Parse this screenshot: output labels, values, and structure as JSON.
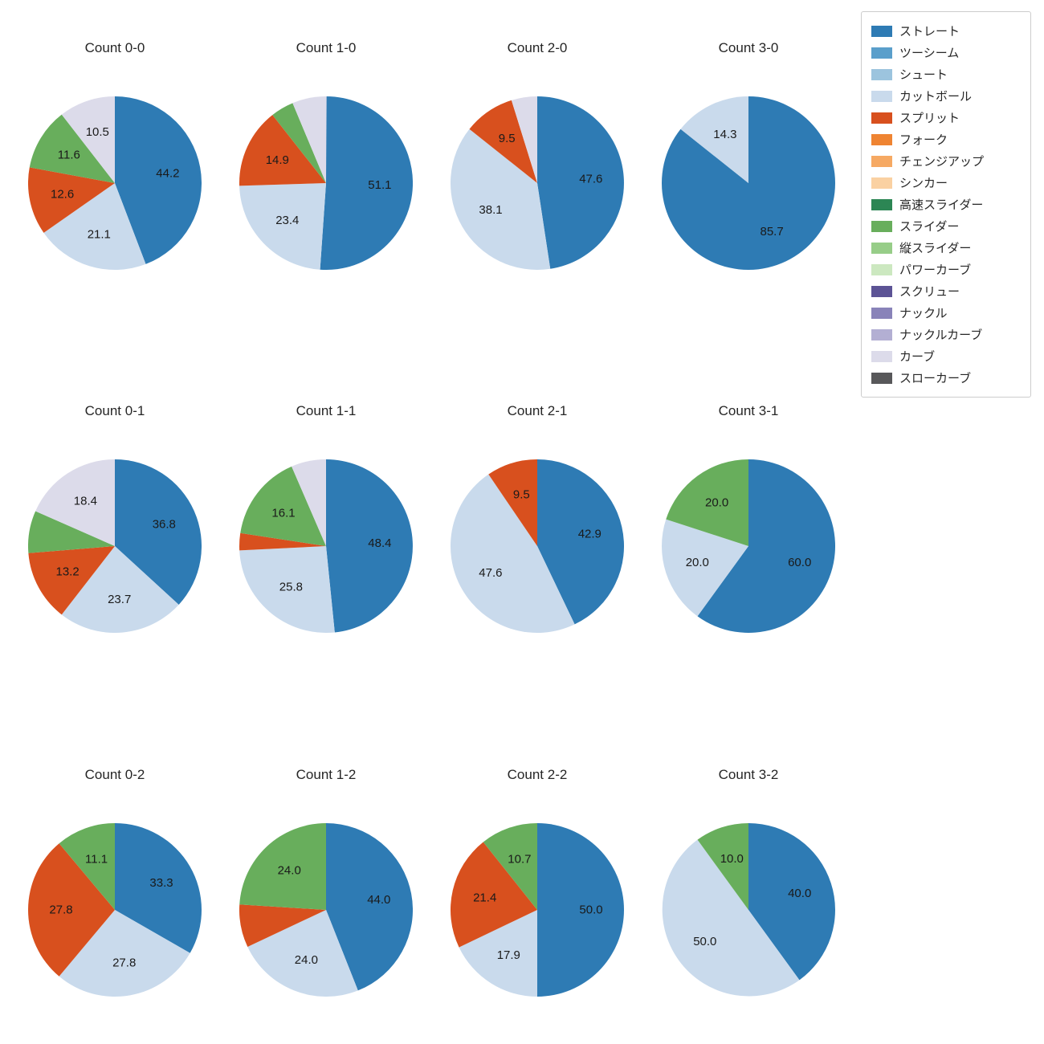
{
  "figure": {
    "rows": 3,
    "cols": 4,
    "start_angle_deg": 90,
    "direction": "clockwise",
    "label_format": "percent_one_decimal",
    "legend_position": "upper_right",
    "background": "#ffffff"
  },
  "palette": {
    "ストレート": "#2e7bb4",
    "ツーシーム": "#5a9fcb",
    "シュート": "#9cc4de",
    "カットボール": "#c9daec",
    "スプリット": "#d8501e",
    "フォーク": "#ef8432",
    "チェンジアップ": "#f6a963",
    "シンカー": "#fad1a2",
    "高速スライダー": "#2c8654",
    "スライダー": "#68ae5c",
    "縦スライダー": "#97cd88",
    "パワーカーブ": "#cce8c0",
    "スクリュー": "#5c5395",
    "ナックル": "#8983b9",
    "ナックルカーブ": "#b3afd3",
    "カーブ": "#dcdbea",
    "スローカーブ": "#58585a"
  },
  "legend": {
    "items": [
      "ストレート",
      "ツーシーム",
      "シュート",
      "カットボール",
      "スプリット",
      "フォーク",
      "チェンジアップ",
      "シンカー",
      "高速スライダー",
      "スライダー",
      "縦スライダー",
      "パワーカーブ",
      "スクリュー",
      "ナックル",
      "ナックルカーブ",
      "カーブ",
      "スローカーブ"
    ]
  },
  "chart_data": [
    {
      "type": "pie",
      "title": "Count 0-0",
      "slices": [
        {
          "pitch": "ストレート",
          "value": 44.2,
          "labeled": true
        },
        {
          "pitch": "カットボール",
          "value": 21.1,
          "labeled": true
        },
        {
          "pitch": "スプリット",
          "value": 12.6,
          "labeled": true
        },
        {
          "pitch": "スライダー",
          "value": 11.6,
          "labeled": true
        },
        {
          "pitch": "カーブ",
          "value": 10.5,
          "labeled": true
        }
      ]
    },
    {
      "type": "pie",
      "title": "Count 1-0",
      "slices": [
        {
          "pitch": "ストレート",
          "value": 51.1,
          "labeled": true
        },
        {
          "pitch": "カットボール",
          "value": 23.4,
          "labeled": true
        },
        {
          "pitch": "スプリット",
          "value": 14.9,
          "labeled": true
        },
        {
          "pitch": "スライダー",
          "value": 4.3,
          "labeled": false
        },
        {
          "pitch": "カーブ",
          "value": 6.4,
          "labeled": false
        }
      ]
    },
    {
      "type": "pie",
      "title": "Count 2-0",
      "slices": [
        {
          "pitch": "ストレート",
          "value": 47.6,
          "labeled": true
        },
        {
          "pitch": "カットボール",
          "value": 38.1,
          "labeled": true
        },
        {
          "pitch": "スプリット",
          "value": 9.5,
          "labeled": true
        },
        {
          "pitch": "カーブ",
          "value": 4.8,
          "labeled": false
        }
      ]
    },
    {
      "type": "pie",
      "title": "Count 3-0",
      "slices": [
        {
          "pitch": "ストレート",
          "value": 85.7,
          "labeled": true
        },
        {
          "pitch": "カットボール",
          "value": 14.3,
          "labeled": true
        }
      ]
    },
    {
      "type": "pie",
      "title": "Count 0-1",
      "slices": [
        {
          "pitch": "ストレート",
          "value": 36.8,
          "labeled": true
        },
        {
          "pitch": "カットボール",
          "value": 23.7,
          "labeled": true
        },
        {
          "pitch": "スプリット",
          "value": 13.2,
          "labeled": true
        },
        {
          "pitch": "スライダー",
          "value": 7.9,
          "labeled": false
        },
        {
          "pitch": "カーブ",
          "value": 18.4,
          "labeled": true
        }
      ]
    },
    {
      "type": "pie",
      "title": "Count 1-1",
      "slices": [
        {
          "pitch": "ストレート",
          "value": 48.4,
          "labeled": true
        },
        {
          "pitch": "カットボール",
          "value": 25.8,
          "labeled": true
        },
        {
          "pitch": "スプリット",
          "value": 3.2,
          "labeled": false
        },
        {
          "pitch": "スライダー",
          "value": 16.1,
          "labeled": true
        },
        {
          "pitch": "カーブ",
          "value": 6.5,
          "labeled": false
        }
      ]
    },
    {
      "type": "pie",
      "title": "Count 2-1",
      "slices": [
        {
          "pitch": "ストレート",
          "value": 42.9,
          "labeled": true
        },
        {
          "pitch": "カットボール",
          "value": 47.6,
          "labeled": true
        },
        {
          "pitch": "スプリット",
          "value": 9.5,
          "labeled": true
        }
      ]
    },
    {
      "type": "pie",
      "title": "Count 3-1",
      "slices": [
        {
          "pitch": "ストレート",
          "value": 60.0,
          "labeled": true
        },
        {
          "pitch": "カットボール",
          "value": 20.0,
          "labeled": true
        },
        {
          "pitch": "スライダー",
          "value": 20.0,
          "labeled": true
        }
      ]
    },
    {
      "type": "pie",
      "title": "Count 0-2",
      "slices": [
        {
          "pitch": "ストレート",
          "value": 33.3,
          "labeled": true
        },
        {
          "pitch": "カットボール",
          "value": 27.8,
          "labeled": true
        },
        {
          "pitch": "スプリット",
          "value": 27.8,
          "labeled": true
        },
        {
          "pitch": "スライダー",
          "value": 11.1,
          "labeled": true
        }
      ]
    },
    {
      "type": "pie",
      "title": "Count 1-2",
      "slices": [
        {
          "pitch": "ストレート",
          "value": 44.0,
          "labeled": true
        },
        {
          "pitch": "カットボール",
          "value": 24.0,
          "labeled": true
        },
        {
          "pitch": "スプリット",
          "value": 8.0,
          "labeled": false
        },
        {
          "pitch": "スライダー",
          "value": 24.0,
          "labeled": true
        }
      ]
    },
    {
      "type": "pie",
      "title": "Count 2-2",
      "slices": [
        {
          "pitch": "ストレート",
          "value": 50.0,
          "labeled": true
        },
        {
          "pitch": "カットボール",
          "value": 17.9,
          "labeled": true
        },
        {
          "pitch": "スプリット",
          "value": 21.4,
          "labeled": true
        },
        {
          "pitch": "スライダー",
          "value": 10.7,
          "labeled": true
        }
      ]
    },
    {
      "type": "pie",
      "title": "Count 3-2",
      "slices": [
        {
          "pitch": "ストレート",
          "value": 40.0,
          "labeled": true
        },
        {
          "pitch": "カットボール",
          "value": 50.0,
          "labeled": true
        },
        {
          "pitch": "スライダー",
          "value": 10.0,
          "labeled": true
        }
      ]
    }
  ]
}
